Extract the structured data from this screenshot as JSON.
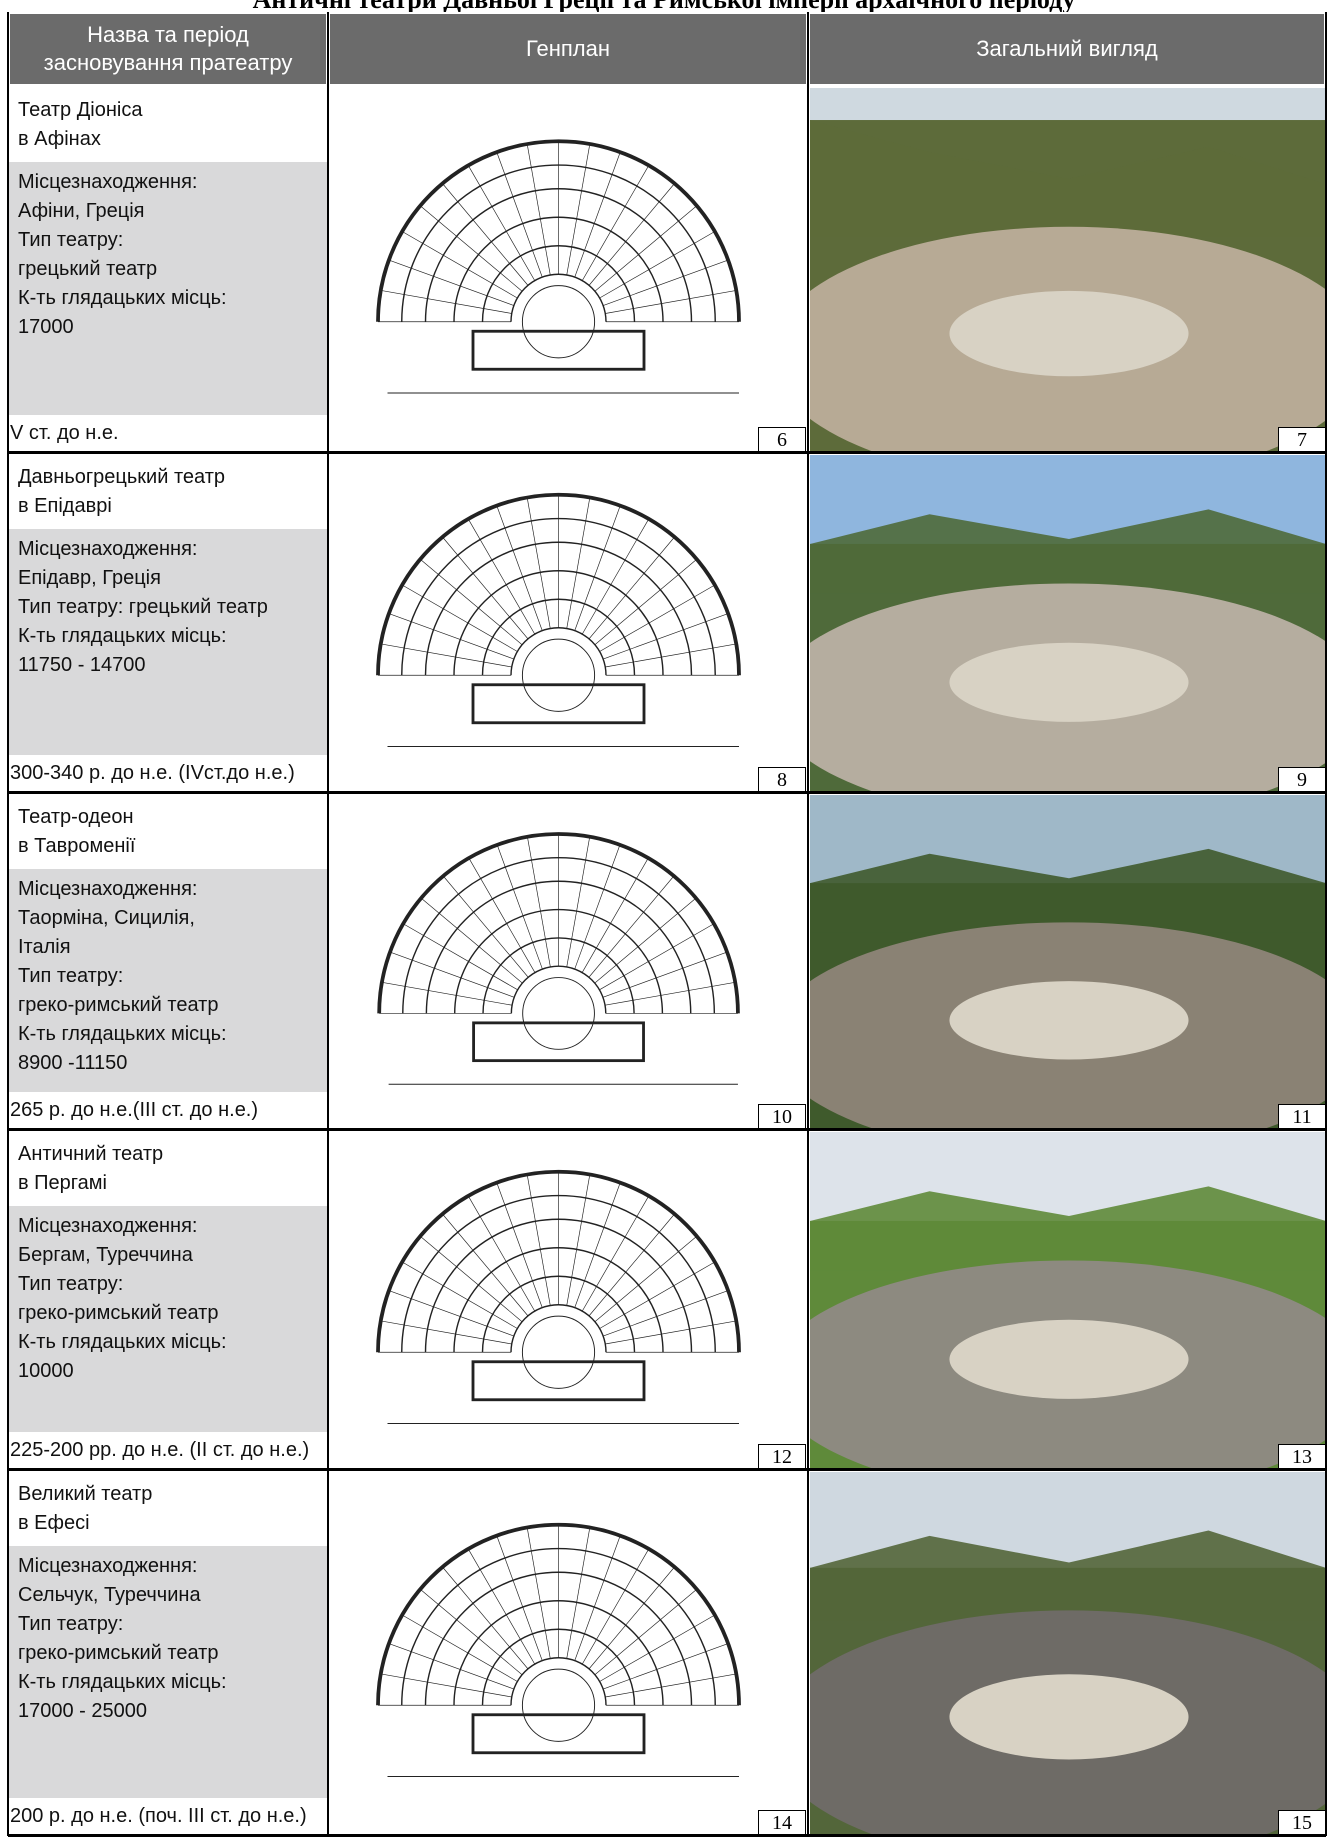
{
  "title": "Античні театри Давньої Греції та Римської імперії архаїчного періоду",
  "header": [
    "Назва та період засновування пратеатру",
    "Генплан",
    "Загальний вигляд"
  ],
  "rows": [
    {
      "name": [
        "Театр Діоніса",
        "в Афінах"
      ],
      "details": [
        "Місцезнаходження:",
        "Афіни, Греція",
        "Тип театру:",
        "грецький театр",
        "К-ть глядацьких місць:",
        "17000"
      ],
      "period": "V ст. до н.е.",
      "plan_figure": "6",
      "photo_figure": "7"
    },
    {
      "name": [
        "Давньогрецький театр",
        "в Епідаврі"
      ],
      "details": [
        "Місцезнаходження:",
        "Епідавр, Греція",
        "Тип театру: грецький театр",
        "К-ть глядацьких місць:",
        "11750 - 14700"
      ],
      "period": "300-340 р. до н.е. (IVст.до н.е.)",
      "plan_figure": "8",
      "photo_figure": "9"
    },
    {
      "name": [
        "Театр-одеон",
        "в Тавроменії"
      ],
      "details": [
        "Місцезнаходження:",
        "Таорміна, Сицилія,",
        "Італія",
        "Тип театру:",
        "греко-римський театр",
        "К-ть глядацьких місць:",
        "8900 -11150"
      ],
      "period": "265 р. до н.е.(III ст. до н.е.)",
      "plan_figure": "10",
      "photo_figure": "11"
    },
    {
      "name": [
        "Античний театр",
        "в Пергамі"
      ],
      "details": [
        "Місцезнаходження:",
        "Бергам, Туреччина",
        "Тип театру:",
        "греко-римський театр",
        "К-ть глядацьких місць:",
        "10000"
      ],
      "period": "225-200 рр. до н.е. (II ст. до н.е.)",
      "plan_figure": "12",
      "photo_figure": "13"
    },
    {
      "name": [
        "Великий театр",
        "в Ефесі"
      ],
      "details": [
        "Місцезнаходження:",
        "Сельчук, Туреччина",
        "Тип театру:",
        "греко-римський театр",
        "К-ть глядацьких місць:",
        "17000 - 25000"
      ],
      "period": "200 р.  до н.е. (поч. III ст.  до н.е.)",
      "plan_figure": "14",
      "photo_figure": "15"
    }
  ]
}
